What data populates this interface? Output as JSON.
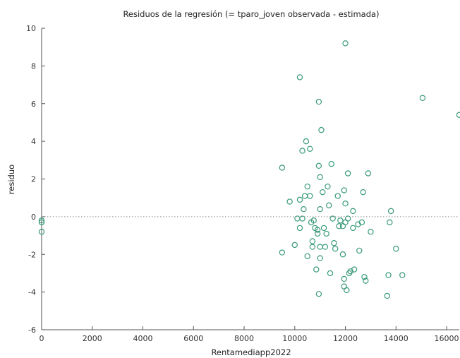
{
  "chart_data": {
    "type": "scatter",
    "title": "Residuos de la regresión (= tparo_joven observada - estimada)",
    "xlabel": "Rentamediapp2022",
    "ylabel": "residuo",
    "xlim": [
      0,
      16500
    ],
    "ylim": [
      -6,
      10
    ],
    "x_ticks": [
      "0",
      "2000",
      "4000",
      "6000",
      "8000",
      "10000",
      "12000",
      "14000",
      "16000"
    ],
    "y_ticks": [
      "-6",
      "-4",
      "-2",
      "0",
      "2",
      "4",
      "6",
      "8",
      "10"
    ],
    "zero_line": true,
    "grid": false,
    "marker_color": "#3a9a7a",
    "points": [
      [
        0,
        -0.2
      ],
      [
        0,
        -0.3
      ],
      [
        0,
        -0.8
      ],
      [
        9500,
        2.6
      ],
      [
        9500,
        -1.9
      ],
      [
        9800,
        0.8
      ],
      [
        10000,
        -1.5
      ],
      [
        10100,
        -0.1
      ],
      [
        10200,
        7.4
      ],
      [
        10200,
        0.9
      ],
      [
        10200,
        -0.6
      ],
      [
        10300,
        3.5
      ],
      [
        10300,
        -0.1
      ],
      [
        10350,
        0.4
      ],
      [
        10400,
        1.1
      ],
      [
        10450,
        4.0
      ],
      [
        10500,
        1.6
      ],
      [
        10500,
        -2.1
      ],
      [
        10600,
        3.6
      ],
      [
        10600,
        1.1
      ],
      [
        10650,
        -0.3
      ],
      [
        10700,
        -1.3
      ],
      [
        10700,
        -1.6
      ],
      [
        10750,
        -0.2
      ],
      [
        10800,
        -0.6
      ],
      [
        10850,
        -2.8
      ],
      [
        10900,
        -0.7
      ],
      [
        10900,
        -0.9
      ],
      [
        10950,
        6.1
      ],
      [
        10950,
        2.7
      ],
      [
        10950,
        -4.1
      ],
      [
        11000,
        2.1
      ],
      [
        11000,
        0.4
      ],
      [
        11000,
        -1.6
      ],
      [
        11000,
        -2.2
      ],
      [
        11050,
        4.6
      ],
      [
        11100,
        1.3
      ],
      [
        11150,
        -0.6
      ],
      [
        11200,
        -1.6
      ],
      [
        11250,
        -0.9
      ],
      [
        11300,
        1.6
      ],
      [
        11350,
        0.6
      ],
      [
        11400,
        -3.0
      ],
      [
        11450,
        2.8
      ],
      [
        11500,
        -0.1
      ],
      [
        11550,
        -1.4
      ],
      [
        11600,
        -1.7
      ],
      [
        11700,
        1.1
      ],
      [
        11750,
        -0.5
      ],
      [
        11800,
        -0.2
      ],
      [
        11900,
        -0.5
      ],
      [
        11900,
        -2.0
      ],
      [
        11950,
        1.4
      ],
      [
        11950,
        -3.3
      ],
      [
        11950,
        -3.7
      ],
      [
        12000,
        9.2
      ],
      [
        12000,
        -0.3
      ],
      [
        12000,
        0.7
      ],
      [
        12050,
        -3.9
      ],
      [
        12100,
        2.3
      ],
      [
        12100,
        -0.1
      ],
      [
        12150,
        -3.0
      ],
      [
        12200,
        -2.9
      ],
      [
        12300,
        0.3
      ],
      [
        12300,
        -0.6
      ],
      [
        12350,
        -2.8
      ],
      [
        12500,
        -0.4
      ],
      [
        12550,
        -1.8
      ],
      [
        12650,
        -0.3
      ],
      [
        12700,
        1.3
      ],
      [
        12750,
        -3.2
      ],
      [
        12800,
        -3.4
      ],
      [
        12900,
        2.3
      ],
      [
        13000,
        -0.8
      ],
      [
        13650,
        -4.2
      ],
      [
        13700,
        -3.1
      ],
      [
        13750,
        -0.3
      ],
      [
        13800,
        0.3
      ],
      [
        14000,
        -1.7
      ],
      [
        14250,
        -3.1
      ],
      [
        15050,
        6.3
      ],
      [
        16500,
        5.4
      ]
    ]
  }
}
